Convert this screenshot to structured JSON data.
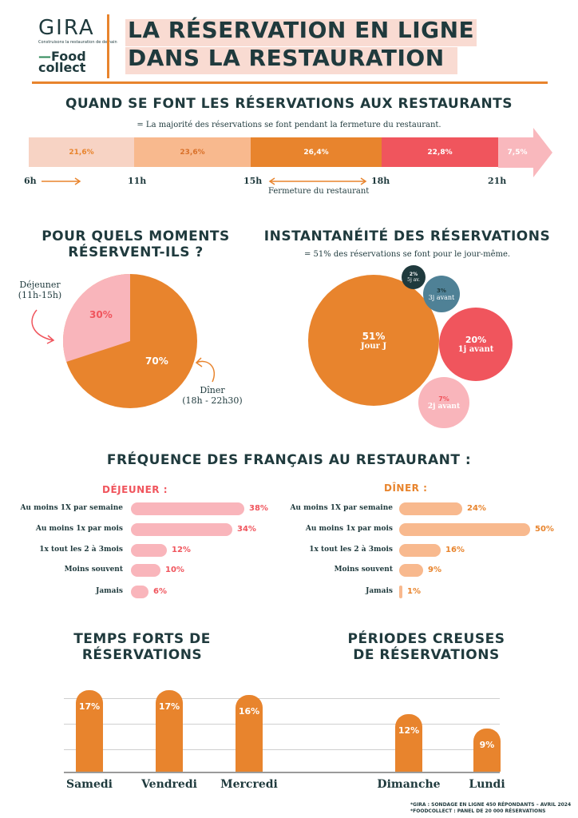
{
  "header": {
    "logo_gira": "GIRA",
    "logo_gira_tagline": "Construisons la restauration de demain",
    "logo_food": "Food",
    "logo_collect": "collect",
    "title_line1": "LA RÉSERVATION EN LIGNE",
    "title_line2": "DANS LA RESTAURATION"
  },
  "timeline": {
    "title": "QUAND SE FONT LES RÉSERVATIONS AUX RESTAURANTS",
    "note": "= La majorité des réservations se font pendant la fermeture du restaurant.",
    "segments": [
      {
        "label": "21,6%",
        "value": 21.6,
        "color": "#f7d3c4",
        "text_color": "#e8842d"
      },
      {
        "label": "23,6%",
        "value": 23.6,
        "color": "#f8b98e",
        "text_color": "#d9712a"
      },
      {
        "label": "26,4%",
        "value": 26.4,
        "color": "#e8842d",
        "text_color": "#ffffff"
      },
      {
        "label": "22,8%",
        "value": 22.8,
        "color": "#f0555d",
        "text_color": "#ffffff"
      },
      {
        "label": "7,5%",
        "value": 7.5,
        "color": "#f9b8bd",
        "text_color": "#ffffff"
      }
    ],
    "hours": [
      "6h",
      "11h",
      "15h",
      "18h",
      "21h"
    ],
    "closure_label": "Fermeture du restaurant"
  },
  "moments": {
    "title_line1": "POUR QUELS MOMENTS",
    "title_line2": "RÉSERVENT-ILS ?",
    "lunch_label_line1": "Déjeuner",
    "lunch_label_line2": "(11h-15h)",
    "dinner_label_line1": "Dîner",
    "dinner_label_line2": "(18h - 22h30)",
    "lunch_pct": "30%",
    "dinner_pct": "70%",
    "lunch_value": 30,
    "dinner_value": 70,
    "lunch_color": "#f9b5bb",
    "dinner_color": "#e8842d"
  },
  "instant": {
    "title": "INSTANTANÉITÉ DES RÉSERVATIONS",
    "note": "= 51% des réservations se font pour le jour-même.",
    "bubbles": [
      {
        "pct": "51%",
        "label": "Jour J",
        "color": "#e8842d",
        "value": 51
      },
      {
        "pct": "20%",
        "label": "1j avant",
        "color": "#f0555d",
        "value": 20
      },
      {
        "pct": "7%",
        "label": "2j avant",
        "color": "#f9b5bb",
        "value": 7
      },
      {
        "pct": "3%",
        "label": "3j avant",
        "color": "#4f8196",
        "value": 3
      },
      {
        "pct": "2%",
        "label": "5j av.",
        "color": "#1f3a3d",
        "value": 2
      }
    ]
  },
  "frequency": {
    "title": "FRÉQUENCE DES FRANÇAIS AU RESTAURANT :",
    "lunch_title": "DÉJEUNER :",
    "dinner_title": "DÎNER :",
    "lunch_color": "#f9b5bb",
    "lunch_text_color": "#f0555d",
    "dinner_color": "#f8b98e",
    "dinner_text_color": "#e8842d",
    "lunch": [
      {
        "label": "Au moins 1X par semaine",
        "pct": "38%",
        "value": 38
      },
      {
        "label": "Au moins 1x par mois",
        "pct": "34%",
        "value": 34
      },
      {
        "label": "1x tout les 2 à 3mois",
        "pct": "12%",
        "value": 12
      },
      {
        "label": "Moins souvent",
        "pct": "10%",
        "value": 10
      },
      {
        "label": "Jamais",
        "pct": "6%",
        "value": 6
      }
    ],
    "dinner": [
      {
        "label": "Au moins 1X par semaine",
        "pct": "24%",
        "value": 24
      },
      {
        "label": "Au moins 1x par mois",
        "pct": "50%",
        "value": 50
      },
      {
        "label": "1x tout les 2 à 3mois",
        "pct": "16%",
        "value": 16
      },
      {
        "label": "Moins souvent",
        "pct": "9%",
        "value": 9
      },
      {
        "label": "Jamais",
        "pct": "1%",
        "value": 1
      }
    ]
  },
  "peaks": {
    "strong_title_line1": "TEMPS FORTS DE",
    "strong_title_line2": "RÉSERVATIONS",
    "weak_title_line1": "PÉRIODES CREUSES",
    "weak_title_line2": "DE RÉSERVATIONS",
    "bars": [
      {
        "day": "Samedi",
        "pct": "17%",
        "value": 17
      },
      {
        "day": "Vendredi",
        "pct": "17%",
        "value": 17
      },
      {
        "day": "Mercredi",
        "pct": "16%",
        "value": 16
      },
      {
        "day": "Dimanche",
        "pct": "12%",
        "value": 12
      },
      {
        "day": "Lundi",
        "pct": "9%",
        "value": 9
      }
    ]
  },
  "footer": {
    "line1": "*GIRA : SONDAGE EN LIGNE 450 RÉPONDANTS – AVRIL 2024",
    "line2": "*FOODCOLLECT : PANEL DE 20 000 RÉSERVATIONS"
  }
}
